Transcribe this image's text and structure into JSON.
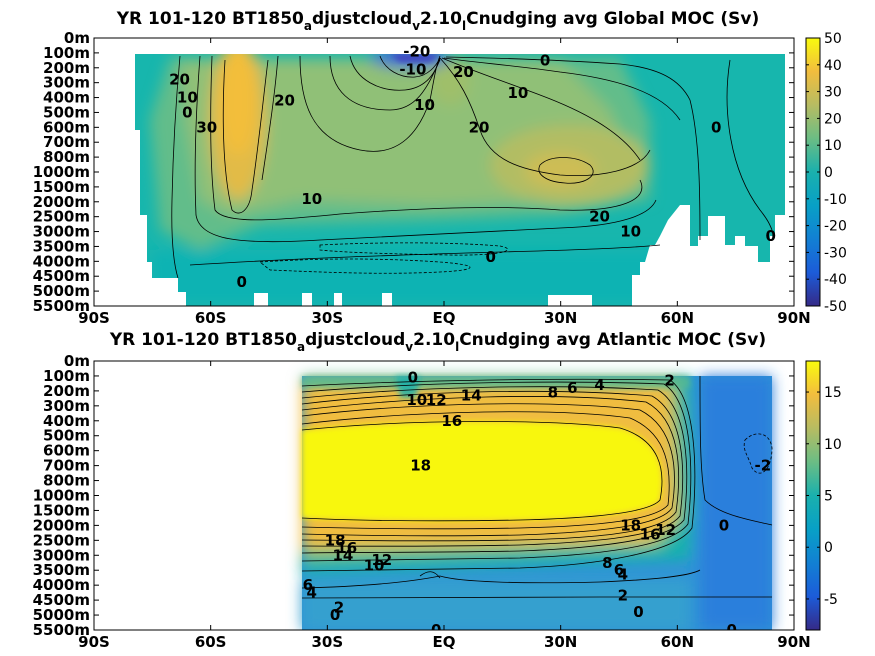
{
  "chart_data": [
    {
      "type": "heatmap",
      "title": "YR 101-120 BT1850_adjustcloud_v2.10_lCnudging avg  Global MOC (Sv)",
      "title_parts": [
        "YR 101-120 BT1850",
        "a",
        "djustcloud",
        "v",
        "2.10",
        "l",
        "Cnudging avg  Global MOC (Sv)"
      ],
      "x_ticks": [
        "90S",
        "60S",
        "30S",
        "EQ",
        "30N",
        "60N",
        "90N"
      ],
      "y_ticks": [
        "0m",
        "100m",
        "200m",
        "300m",
        "400m",
        "500m",
        "600m",
        "700m",
        "800m",
        "1000m",
        "1500m",
        "2000m",
        "2500m",
        "3000m",
        "3500m",
        "4000m",
        "4500m",
        "5000m",
        "5500m"
      ],
      "colorbar": {
        "ticks": [
          "50",
          "40",
          "30",
          "20",
          "10",
          "0",
          "-10",
          "-20",
          "-30",
          "-40",
          "-50"
        ],
        "range": [
          -50,
          50
        ]
      },
      "contour_labels": [
        {
          "text": "-20",
          "lat": -7,
          "depth": 0.9
        },
        {
          "text": "-10",
          "lat": -8,
          "depth": 2.1
        },
        {
          "text": "0",
          "lat": 26,
          "depth": 1.5
        },
        {
          "text": "0",
          "lat": -66,
          "depth": 5.0
        },
        {
          "text": "0",
          "lat": 70,
          "depth": 6.0
        },
        {
          "text": "0",
          "lat": 84,
          "depth": 13.3
        },
        {
          "text": "0",
          "lat": 12,
          "depth": 14.7
        },
        {
          "text": "0",
          "lat": -52,
          "depth": 16.4
        },
        {
          "text": "10",
          "lat": -66,
          "depth": 4.0
        },
        {
          "text": "10",
          "lat": -5,
          "depth": 4.5
        },
        {
          "text": "10",
          "lat": 19,
          "depth": 3.7
        },
        {
          "text": "10",
          "lat": -34,
          "depth": 10.8
        },
        {
          "text": "10",
          "lat": 48,
          "depth": 13.0
        },
        {
          "text": "20",
          "lat": -68,
          "depth": 2.8
        },
        {
          "text": "20",
          "lat": -41,
          "depth": 4.2
        },
        {
          "text": "20",
          "lat": 5,
          "depth": 2.3
        },
        {
          "text": "20",
          "lat": 9,
          "depth": 6.0
        },
        {
          "text": "20",
          "lat": 40,
          "depth": 12.0
        },
        {
          "text": "30",
          "lat": -61,
          "depth": 6.0
        }
      ]
    },
    {
      "type": "heatmap",
      "title": "YR 101-120 BT1850_adjustcloud_v2.10_lCnudging avg  Atlantic MOC (Sv)",
      "title_parts": [
        "YR 101-120 BT1850",
        "a",
        "djustcloud",
        "v",
        "2.10",
        "l",
        "Cnudging avg  Atlantic MOC (Sv)"
      ],
      "x_ticks": [
        "90S",
        "60S",
        "30S",
        "EQ",
        "30N",
        "60N",
        "90N"
      ],
      "y_ticks": [
        "0m",
        "100m",
        "200m",
        "300m",
        "400m",
        "500m",
        "600m",
        "700m",
        "800m",
        "1000m",
        "1500m",
        "2000m",
        "2500m",
        "3000m",
        "3500m",
        "4000m",
        "4500m",
        "5000m",
        "5500m"
      ],
      "colorbar": {
        "ticks": [
          "15",
          "10",
          "5",
          "0",
          "-5"
        ],
        "range": [
          -8,
          18
        ]
      },
      "contour_labels": [
        {
          "text": "0",
          "lat": -8,
          "depth": 1.1
        },
        {
          "text": "2",
          "lat": 58,
          "depth": 1.3
        },
        {
          "text": "4",
          "lat": 40,
          "depth": 1.6
        },
        {
          "text": "6",
          "lat": 33,
          "depth": 1.8
        },
        {
          "text": "8",
          "lat": 28,
          "depth": 2.1
        },
        {
          "text": "12",
          "lat": -2,
          "depth": 2.6
        },
        {
          "text": "10",
          "lat": -7,
          "depth": 2.6
        },
        {
          "text": "14",
          "lat": 7,
          "depth": 2.3
        },
        {
          "text": "16",
          "lat": 2,
          "depth": 4.0
        },
        {
          "text": "18",
          "lat": -6,
          "depth": 7.0
        },
        {
          "text": "-2",
          "lat": 82,
          "depth": 7.0
        },
        {
          "text": "0",
          "lat": 72,
          "depth": 11.0
        },
        {
          "text": "18",
          "lat": 48,
          "depth": 11.0
        },
        {
          "text": "16",
          "lat": 53,
          "depth": 11.6
        },
        {
          "text": "12",
          "lat": 57,
          "depth": 11.3
        },
        {
          "text": "18",
          "lat": -28,
          "depth": 12.0
        },
        {
          "text": "16",
          "lat": -25,
          "depth": 12.5
        },
        {
          "text": "14",
          "lat": -26,
          "depth": 13.0
        },
        {
          "text": "12",
          "lat": -16,
          "depth": 13.3
        },
        {
          "text": "10",
          "lat": -18,
          "depth": 13.7
        },
        {
          "text": "8",
          "lat": 42,
          "depth": 13.5
        },
        {
          "text": "6",
          "lat": 45,
          "depth": 14.0
        },
        {
          "text": "4",
          "lat": 46,
          "depth": 14.3
        },
        {
          "text": "6",
          "lat": -35,
          "depth": 15.0
        },
        {
          "text": "4",
          "lat": -34,
          "depth": 15.5
        },
        {
          "text": "2",
          "lat": 46,
          "depth": 15.7
        },
        {
          "text": "2",
          "lat": -27,
          "depth": 16.5
        },
        {
          "text": "0",
          "lat": -28,
          "depth": 17.0
        },
        {
          "text": "0",
          "lat": 50,
          "depth": 16.8
        },
        {
          "text": "0",
          "lat": -2,
          "depth": 18.0
        },
        {
          "text": "0",
          "lat": 74,
          "depth": 18.0
        }
      ]
    }
  ]
}
